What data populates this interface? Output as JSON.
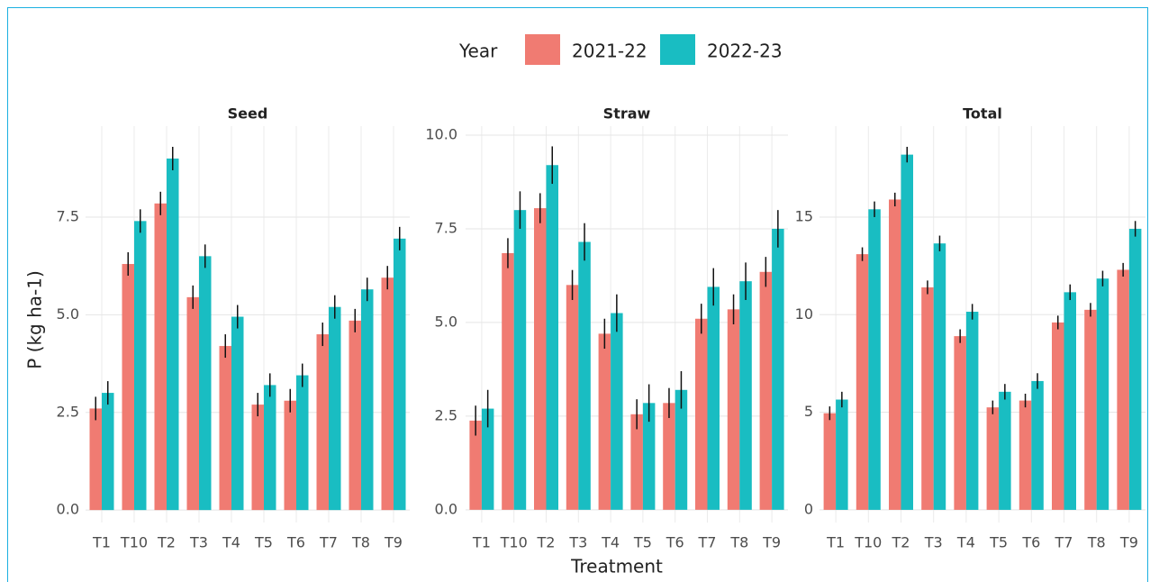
{
  "chart_data": {
    "type": "bar",
    "legend_title": "Year",
    "x_label": "Treatment",
    "y_label": "P (kg ha-1)",
    "categories": [
      "T1",
      "T10",
      "T2",
      "T3",
      "T4",
      "T5",
      "T6",
      "T7",
      "T8",
      "T9"
    ],
    "series": [
      {
        "name": "2021-22",
        "color": "#f07b72"
      },
      {
        "name": "2022-23",
        "color": "#19bdc2"
      }
    ],
    "grid": true,
    "facets": [
      {
        "title": "Seed",
        "ylim": [
          -0.32,
          9.83
        ],
        "yticks": [
          {
            "value": 0,
            "label": "0.0"
          },
          2.5,
          {
            "value": 5,
            "label": "5.0"
          },
          7.5
        ],
        "series": [
          {
            "values": [
              2.6,
              6.3,
              7.85,
              5.45,
              4.2,
              2.7,
              2.8,
              4.5,
              4.85,
              5.95
            ],
            "errors": [
              0.3,
              0.3,
              0.3,
              0.3,
              0.3,
              0.3,
              0.3,
              0.3,
              0.3,
              0.3
            ]
          },
          {
            "values": [
              3.0,
              7.4,
              9.0,
              6.5,
              4.95,
              3.2,
              3.45,
              5.2,
              5.65,
              6.95
            ],
            "errors": [
              0.3,
              0.3,
              0.3,
              0.3,
              0.3,
              0.3,
              0.3,
              0.3,
              0.3,
              0.3
            ]
          }
        ]
      },
      {
        "title": "Straw",
        "ylim": [
          -0.34,
          10.24
        ],
        "yticks": [
          {
            "value": 0,
            "label": "0.0"
          },
          2.5,
          {
            "value": 5,
            "label": "5.0"
          },
          7.5,
          {
            "value": 10,
            "label": "10.0"
          }
        ],
        "series": [
          {
            "values": [
              2.38,
              6.85,
              8.05,
              6.0,
              4.7,
              2.55,
              2.85,
              5.1,
              5.35,
              6.35
            ],
            "errors": [
              0.4,
              0.4,
              0.4,
              0.4,
              0.4,
              0.4,
              0.4,
              0.4,
              0.4,
              0.4
            ]
          },
          {
            "values": [
              2.7,
              8.0,
              9.2,
              7.15,
              5.25,
              2.85,
              3.2,
              5.95,
              6.1,
              7.5
            ],
            "errors": [
              0.5,
              0.5,
              0.5,
              0.5,
              0.5,
              0.5,
              0.5,
              0.5,
              0.5,
              0.5
            ]
          }
        ]
      },
      {
        "title": "Total",
        "ylim": [
          -0.65,
          19.66
        ],
        "yticks": [
          0,
          5,
          10,
          15
        ],
        "series": [
          {
            "values": [
              4.95,
              13.1,
              15.9,
              11.4,
              8.9,
              5.25,
              5.6,
              9.6,
              10.25,
              12.3
            ],
            "errors": [
              0.35,
              0.35,
              0.35,
              0.35,
              0.35,
              0.35,
              0.35,
              0.35,
              0.35,
              0.35
            ]
          },
          {
            "values": [
              5.65,
              15.4,
              18.2,
              13.65,
              10.15,
              6.05,
              6.6,
              11.15,
              11.85,
              14.4
            ],
            "errors": [
              0.4,
              0.4,
              0.4,
              0.4,
              0.4,
              0.4,
              0.4,
              0.4,
              0.4,
              0.4
            ]
          }
        ]
      }
    ]
  }
}
